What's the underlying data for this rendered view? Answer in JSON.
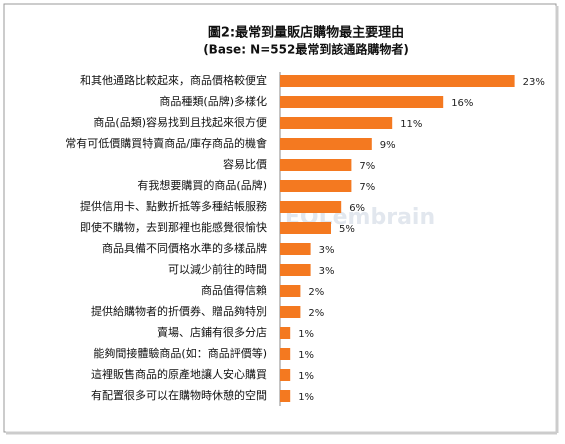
{
  "chart_data": {
    "type": "bar",
    "orientation": "horizontal",
    "title": "圖2:最常到量販店購物最主要理由",
    "subtitle": "(Base: N=552最常到該通路購物者)",
    "watermark": "EOLembrain",
    "color": "#f47920",
    "categories": [
      "和其他通路比較起來，商品價格較便宜",
      "商品種類(品牌)多樣化",
      "商品(品類)容易找到且找起來很方便",
      "常有可低價購買特賣商品/庫存商品的機會",
      "容易比價",
      "有我想要購買的商品(品牌)",
      "提供信用卡、點數折抵等多種結帳服務",
      "即使不購物，去到那裡也能感覺很愉快",
      "商品具備不同價格水準的多樣品牌",
      "可以減少前往的時間",
      "商品值得信賴",
      "提供給購物者的折價券、贈品夠特別",
      "賣場、店鋪有很多分店",
      "能夠間接體驗商品(如：商品評價等)",
      "這裡販售商品的原產地讓人安心購買",
      "有配置很多可以在購物時休憩的空間"
    ],
    "values": [
      23,
      16,
      11,
      9,
      7,
      7,
      6,
      5,
      3,
      3,
      2,
      2,
      1,
      1,
      1,
      1
    ],
    "value_labels": [
      "23%",
      "16%",
      "11%",
      "9%",
      "7%",
      "7%",
      "6%",
      "5%",
      "3%",
      "3%",
      "2%",
      "2%",
      "1%",
      "1%",
      "1%",
      "1%"
    ]
  }
}
